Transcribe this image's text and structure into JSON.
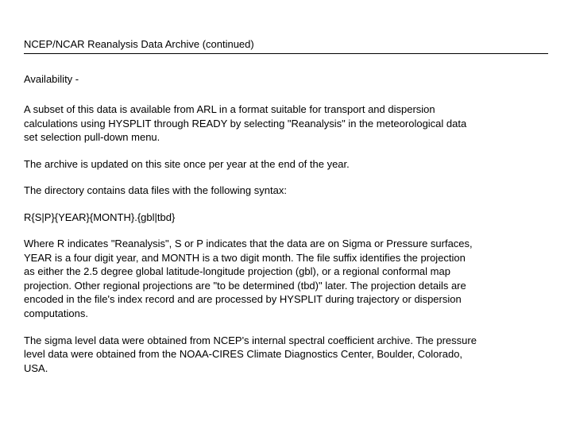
{
  "document": {
    "title": "NCEP/NCAR Reanalysis Data Archive  (continued)",
    "section_label": "Availability -",
    "paragraphs": {
      "p1": "A subset of this data is available from ARL in a format suitable for transport and dispersion calculations using HYSPLIT through READY by selecting \"Reanalysis\" in the meteorological data set selection pull-down menu.",
      "p2": "The archive is updated on this site once per year at the end of the year.",
      "p3": "The directory contains data files with the following syntax:",
      "p4": "R{S|P}{YEAR}{MONTH}.{gbl|tbd}",
      "p5": "Where R indicates \"Reanalysis\", S or P indicates that the data are on Sigma or Pressure surfaces, YEAR is a four digit year, and MONTH is a two digit month. The file suffix identifies the projection as either the 2.5 degree global latitude-longitude projection (gbl), or a regional conformal map projection. Other regional projections are \"to be determined (tbd)\" later.  The projection details are encoded in the file's index record and are processed by HYSPLIT during trajectory or dispersion computations.",
      "p6": "The sigma level data were obtained from NCEP's internal spectral coefficient archive. The pressure level data were obtained from the NOAA-CIRES Climate Diagnostics Center, Boulder, Colorado, USA."
    },
    "style": {
      "background_color": "#ffffff",
      "text_color": "#000000",
      "font_family": "Arial, Helvetica, sans-serif",
      "title_fontsize": 13,
      "body_fontsize": 13,
      "line_height": 1.35,
      "divider_color": "#000000"
    }
  }
}
